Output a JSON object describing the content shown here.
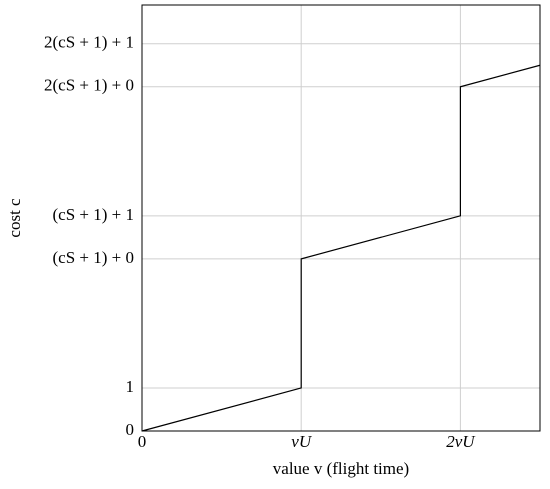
{
  "chart_data": {
    "type": "line",
    "x_label": "value v (flight time)",
    "y_label": "cost c",
    "x": [
      0,
      1,
      1,
      2,
      2,
      2.5
    ],
    "series": [
      {
        "color": "#000000",
        "values": [
          0,
          1,
          4,
          5,
          8,
          8.5
        ]
      }
    ],
    "xlim": [
      0,
      2.5
    ],
    "ylim": [
      0,
      9.9
    ],
    "xticks": [
      0,
      {
        "value": 1,
        "label": "vU"
      },
      {
        "value": 2,
        "label": "2vU"
      }
    ],
    "yticks": [
      0,
      1,
      {
        "value": 4,
        "label": "(cS + 1) + 0"
      },
      {
        "value": 5,
        "label": "(cS + 1) + 1"
      },
      {
        "value": 8,
        "label": "2(cS + 1) + 0"
      },
      {
        "value": 9,
        "label": "2(cS + 1) + 1"
      }
    ],
    "grid": true
  }
}
